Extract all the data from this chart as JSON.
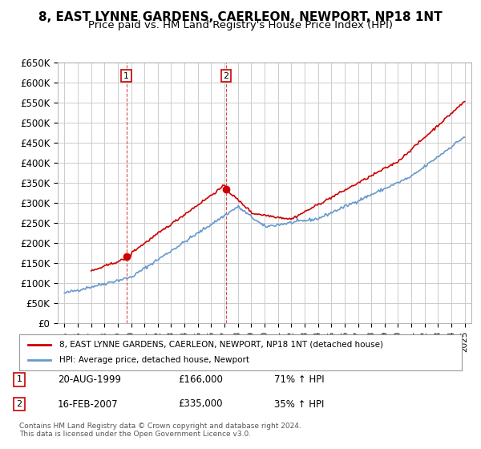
{
  "title": "8, EAST LYNNE GARDENS, CAERLEON, NEWPORT, NP18 1NT",
  "subtitle": "Price paid vs. HM Land Registry's House Price Index (HPI)",
  "ylabel": "",
  "xlabel": "",
  "ylim": [
    0,
    650000
  ],
  "yticks": [
    0,
    50000,
    100000,
    150000,
    200000,
    250000,
    300000,
    350000,
    400000,
    450000,
    500000,
    550000,
    600000,
    650000
  ],
  "ytick_labels": [
    "£0",
    "£50K",
    "£100K",
    "£150K",
    "£200K",
    "£250K",
    "£300K",
    "£350K",
    "£400K",
    "£450K",
    "£500K",
    "£550K",
    "£600K",
    "£650K"
  ],
  "xlim_start": 1994.5,
  "xlim_end": 2025.5,
  "sale1_x": 1999.64,
  "sale1_y": 166000,
  "sale1_label": "1",
  "sale2_x": 2007.12,
  "sale2_y": 335000,
  "sale2_label": "2",
  "red_line_color": "#cc0000",
  "blue_line_color": "#6699cc",
  "grid_color": "#cccccc",
  "bg_color": "#ffffff",
  "legend_line1": "8, EAST LYNNE GARDENS, CAERLEON, NEWPORT, NP18 1NT (detached house)",
  "legend_line2": "HPI: Average price, detached house, Newport",
  "table_row1": [
    "1",
    "20-AUG-1999",
    "£166,000",
    "71% ↑ HPI"
  ],
  "table_row2": [
    "2",
    "16-FEB-2007",
    "£335,000",
    "35% ↑ HPI"
  ],
  "footer": "Contains HM Land Registry data © Crown copyright and database right 2024.\nThis data is licensed under the Open Government Licence v3.0.",
  "title_fontsize": 11,
  "subtitle_fontsize": 9.5
}
